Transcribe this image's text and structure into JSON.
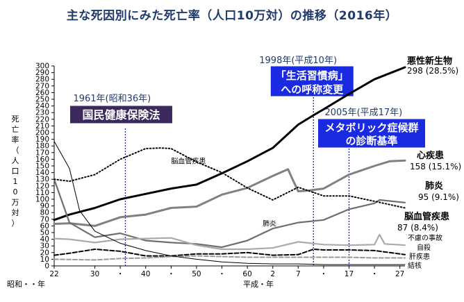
{
  "title": "主な死因別にみた死亡率（人口10万対）の推移（2016年）",
  "chart_data": {
    "type": "line",
    "ylabel": "死亡率（人口10万対）",
    "ylim": [
      0,
      300
    ],
    "yticks": [
      0,
      10,
      20,
      30,
      40,
      50,
      60,
      70,
      80,
      90,
      100,
      110,
      120,
      130,
      140,
      150,
      160,
      170,
      180,
      190,
      200,
      210,
      220,
      230,
      240,
      250,
      260,
      270,
      280,
      290,
      300
    ],
    "xlim": [
      1947,
      2016
    ],
    "xticks": [
      {
        "x": 1947,
        "label": "22"
      },
      {
        "x": 1955,
        "label": "30"
      },
      {
        "x": 1960,
        "label": "・"
      },
      {
        "x": 1965,
        "label": "40"
      },
      {
        "x": 1970,
        "label": "・"
      },
      {
        "x": 1975,
        "label": "50"
      },
      {
        "x": 1980,
        "label": "・"
      },
      {
        "x": 1985,
        "label": "60"
      },
      {
        "x": 1990,
        "label": "2"
      },
      {
        "x": 1995,
        "label": "7"
      },
      {
        "x": 2000,
        "label": "・"
      },
      {
        "x": 2005,
        "label": "17"
      },
      {
        "x": 2010,
        "label": "・"
      },
      {
        "x": 2015,
        "label": "27"
      }
    ],
    "era_labels": [
      "昭和・・年",
      "平成・年"
    ],
    "grid": false,
    "series": [
      {
        "name": "悪性新生物",
        "value_label": "298 (28.5%)",
        "color": "#000000",
        "style": "solid-thick",
        "x": [
          1947,
          1950,
          1955,
          1960,
          1965,
          1970,
          1975,
          1980,
          1985,
          1990,
          1995,
          1998,
          2000,
          2005,
          2010,
          2015,
          2016
        ],
        "y": [
          69,
          77,
          87,
          100,
          108,
          116,
          122,
          139,
          157,
          177,
          212,
          226,
          235,
          258,
          280,
          295,
          298
        ]
      },
      {
        "name": "心疾患",
        "value_label": "158 (15.1%)",
        "color": "#808080",
        "style": "solid-thick",
        "x": [
          1947,
          1950,
          1955,
          1960,
          1965,
          1970,
          1975,
          1980,
          1985,
          1990,
          1993,
          1994,
          1995,
          1997,
          2000,
          2005,
          2010,
          2013,
          2016
        ],
        "y": [
          63,
          64,
          60,
          73,
          77,
          87,
          89,
          107,
          117,
          135,
          145,
          128,
          112,
          113,
          116,
          137,
          150,
          157,
          158
        ]
      },
      {
        "name": "肺炎",
        "value_label": "95 (9.1%)",
        "color": "#6e6e6e",
        "style": "solid",
        "x": [
          1947,
          1950,
          1955,
          1960,
          1965,
          1970,
          1975,
          1980,
          1985,
          1990,
          1995,
          2000,
          2005,
          2010,
          2011,
          2016
        ],
        "y": [
          130,
          65,
          43,
          49,
          38,
          35,
          33,
          28,
          38,
          56,
          65,
          69,
          85,
          94,
          99,
          95
        ]
      },
      {
        "name": "脳血管疾患",
        "value_label": "87 (8.4%)",
        "color": "#000000",
        "style": "dotted",
        "x": [
          1947,
          1950,
          1955,
          1960,
          1965,
          1968,
          1970,
          1975,
          1980,
          1985,
          1990,
          1995,
          2000,
          2005,
          2010,
          2016
        ],
        "y": [
          130,
          127,
          137,
          160,
          176,
          177,
          176,
          156,
          140,
          117,
          99,
          118,
          105,
          105,
          97,
          87
        ]
      },
      {
        "name": "不慮の事故",
        "value_label": "",
        "color": "#aaaaaa",
        "style": "solid",
        "x": [
          1947,
          1950,
          1955,
          1960,
          1965,
          1970,
          1975,
          1980,
          1985,
          1990,
          1995,
          2000,
          2005,
          2010,
          2011,
          2012,
          2016
        ],
        "y": [
          41,
          40,
          35,
          40,
          41,
          42,
          31,
          25,
          25,
          27,
          36,
          32,
          31,
          32,
          47,
          33,
          31
        ]
      },
      {
        "name": "自殺",
        "value_label": "",
        "color": "#000000",
        "style": "dashed",
        "x": [
          1947,
          1950,
          1955,
          1960,
          1965,
          1970,
          1975,
          1980,
          1985,
          1990,
          1995,
          1998,
          2000,
          2005,
          2010,
          2016
        ],
        "y": [
          16,
          19,
          25,
          22,
          15,
          15,
          18,
          18,
          20,
          16,
          17,
          25,
          24,
          24,
          23,
          17
        ]
      },
      {
        "name": "肝疾患",
        "value_label": "",
        "color": "#999999",
        "style": "dashed",
        "x": [
          1947,
          1955,
          1960,
          1965,
          1970,
          1975,
          1980,
          1985,
          1990,
          1995,
          2000,
          2005,
          2010,
          2016
        ],
        "y": [
          10,
          9,
          11,
          12,
          14,
          15,
          14,
          13,
          13,
          13,
          13,
          13,
          12,
          12
        ]
      },
      {
        "name": "結核",
        "value_label": "",
        "color": "#000000",
        "style": "solid-thin",
        "x": [
          1947,
          1950,
          1952,
          1955,
          1960,
          1965,
          1970,
          1975,
          1980,
          1985,
          1990,
          1995,
          2000,
          2005,
          2010,
          2016
        ],
        "y": [
          187,
          146,
          83,
          52,
          34,
          23,
          15,
          10,
          6,
          4,
          3,
          3,
          2,
          2,
          2,
          2
        ]
      }
    ],
    "annotations": [
      {
        "x": 1961,
        "year_text": "1961年(昭和36年)",
        "event_text": "国民健康保険法",
        "box": "#3c2a5e"
      },
      {
        "x": 1998,
        "year_text": "1998年(平成10年)",
        "event_text": "「生活習慣病」への呼称変更",
        "box": "#1a2ae0"
      },
      {
        "x": 2005,
        "year_text": "2005年(平成17年)",
        "event_text": "メタボリック症候群の診断基準",
        "box": "#1a2ae0"
      }
    ],
    "inline_labels": [
      {
        "text": "脳血管疾患",
        "x": 1970,
        "y": 183
      },
      {
        "text": "肺炎",
        "x": 1988,
        "y": 60
      }
    ]
  }
}
